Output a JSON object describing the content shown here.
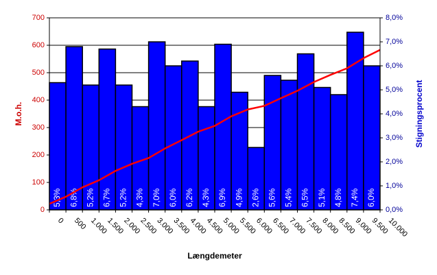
{
  "chart_data": {
    "type": "combo",
    "x_label": "Længdemeter",
    "y_label": "M.o.h.",
    "y2_label": "Stigningsprocent",
    "x": [
      0,
      500,
      1000,
      1500,
      2000,
      2500,
      3000,
      3500,
      4000,
      4500,
      5000,
      5500,
      6000,
      6500,
      7000,
      7500,
      8000,
      8500,
      9000,
      9500,
      10000
    ],
    "xlim": [
      0,
      10000
    ],
    "xticks": [
      {
        "value": 0,
        "label": "0"
      },
      {
        "value": 500,
        "label": "500"
      },
      {
        "value": 1000,
        "label": "1.000"
      },
      {
        "value": 1500,
        "label": "1.500"
      },
      {
        "value": 2000,
        "label": "2.000"
      },
      {
        "value": 2500,
        "label": "2.500"
      },
      {
        "value": 3000,
        "label": "3.000"
      },
      {
        "value": 3500,
        "label": "3.500"
      },
      {
        "value": 4000,
        "label": "4.000"
      },
      {
        "value": 4500,
        "label": "4.500"
      },
      {
        "value": 5000,
        "label": "5.000"
      },
      {
        "value": 5500,
        "label": "5.500"
      },
      {
        "value": 6000,
        "label": "6.000"
      },
      {
        "value": 6500,
        "label": "6.500"
      },
      {
        "value": 7000,
        "label": "7.000"
      },
      {
        "value": 7500,
        "label": "7.500"
      },
      {
        "value": 8000,
        "label": "8.000"
      },
      {
        "value": 8500,
        "label": "8.500"
      },
      {
        "value": 9000,
        "label": "9.000"
      },
      {
        "value": 9500,
        "label": "9.500"
      },
      {
        "value": 10000,
        "label": "10.000"
      }
    ],
    "ylim": [
      0,
      700
    ],
    "yticks": [
      0,
      100,
      200,
      300,
      400,
      500,
      600,
      700
    ],
    "y2lim": [
      0,
      8
    ],
    "y2ticks": [
      {
        "value": 0,
        "label": "0,0%"
      },
      {
        "value": 1,
        "label": "1,0%"
      },
      {
        "value": 2,
        "label": "2,0%"
      },
      {
        "value": 3,
        "label": "3,0%"
      },
      {
        "value": 4,
        "label": "4,0%"
      },
      {
        "value": 5,
        "label": "5,0%"
      },
      {
        "value": 6,
        "label": "6,0%"
      },
      {
        "value": 7,
        "label": "7,0%"
      },
      {
        "value": 8,
        "label": "8,0%"
      }
    ],
    "grid": true,
    "bars": {
      "axis": "y2",
      "color": "#0000ff",
      "values": [
        5.3,
        6.8,
        5.2,
        6.7,
        5.2,
        4.3,
        7.0,
        6.0,
        6.2,
        4.3,
        6.9,
        4.9,
        2.6,
        5.6,
        5.4,
        6.5,
        5.1,
        4.8,
        7.4,
        6.0
      ],
      "value_labels": [
        "5,3%",
        "6,8%",
        "5,2%",
        "6,7%",
        "5,2%",
        "4,3%",
        "7,0%",
        "6,0%",
        "6,2%",
        "4,3%",
        "6,9%",
        "4,9%",
        "2,6%",
        "5,6%",
        "5,4%",
        "6,5%",
        "5,1%",
        "4,8%",
        "7,4%",
        "6,0%"
      ]
    },
    "line": {
      "color": "#ff0000",
      "values": [
        22,
        48,
        82,
        108,
        142,
        168,
        189,
        224,
        254,
        285,
        306,
        341,
        366,
        379,
        407,
        434,
        466,
        492,
        516,
        553,
        583
      ]
    }
  }
}
